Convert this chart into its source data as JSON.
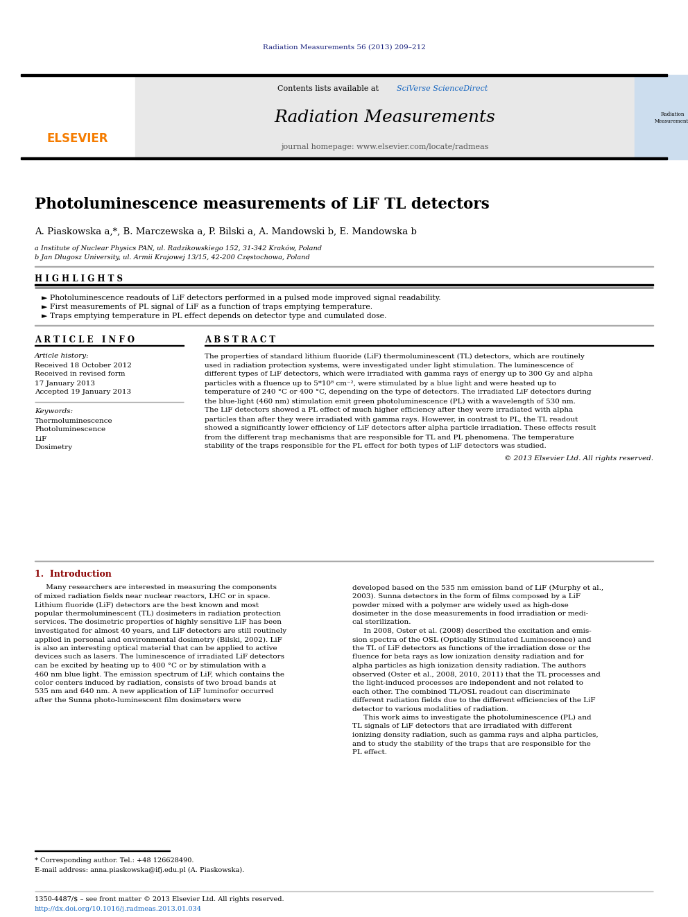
{
  "journal_ref": "Radiation Measurements 56 (2013) 209–212",
  "journal_ref_color": "#1a237e",
  "header_text1": "Contents lists available at ",
  "header_link": "SciVerse ScienceDirect",
  "journal_title": "Radiation Measurements",
  "journal_homepage": "journal homepage: www.elsevier.com/locate/radmeas",
  "elsevier_color": "#f57c00",
  "header_bg": "#e8e8e8",
  "article_title": "Photoluminescence measurements of LiF TL detectors",
  "authors": "A. Piaskowska a,*, B. Marczewska a, P. Bilski a, A. Mandowski b, E. Mandowska b",
  "affil1": "a Institute of Nuclear Physics PAN, ul. Radzikowskiego 152, 31-342 Kraków, Poland",
  "affil2": "b Jan Długosz University, ul. Armii Krajowej 13/15, 42-200 Częstochowa, Poland",
  "highlights_title": "H I G H L I G H T S",
  "highlight1": "► Photoluminescence readouts of LiF detectors performed in a pulsed mode improved signal readability.",
  "highlight2": "► First measurements of PL signal of LiF as a function of traps emptying temperature.",
  "highlight3": "► Traps emptying temperature in PL effect depends on detector type and cumulated dose.",
  "article_info_title": "A R T I C L E   I N F O",
  "abstract_title": "A B S T R A C T",
  "article_history": "Article history:",
  "received1": "Received 18 October 2012",
  "received2": "Received in revised form",
  "date2": "17 January 2013",
  "accepted": "Accepted 19 January 2013",
  "keywords_title": "Keywords:",
  "kw1": "Thermoluminescence",
  "kw2": "Photoluminescence",
  "kw3": "LiF",
  "kw4": "Dosimetry",
  "abstract_lines": [
    "The properties of standard lithium fluoride (LiF) thermoluminescent (TL) detectors, which are routinely",
    "used in radiation protection systems, were investigated under light stimulation. The luminescence of",
    "different types of LiF detectors, which were irradiated with gamma rays of energy up to 300 Gy and alpha",
    "particles with a fluence up to 5*10⁸ cm⁻², were stimulated by a blue light and were heated up to",
    "temperature of 240 °C or 400 °C, depending on the type of detectors. The irradiated LiF detectors during",
    "the blue-light (460 nm) stimulation emit green photoluminescence (PL) with a wavelength of 530 nm.",
    "The LiF detectors showed a PL effect of much higher efficiency after they were irradiated with alpha",
    "particles than after they were irradiated with gamma rays. However, in contrast to PL, the TL readout",
    "showed a significantly lower efficiency of LiF detectors after alpha particle irradiation. These effects result",
    "from the different trap mechanisms that are responsible for TL and PL phenomena. The temperature",
    "stability of the traps responsible for the PL effect for both types of LiF detectors was studied."
  ],
  "copyright": "© 2013 Elsevier Ltd. All rights reserved.",
  "intro_title": "1.  Introduction",
  "intro_col1_lines": [
    "     Many researchers are interested in measuring the components",
    "of mixed radiation fields near nuclear reactors, LHC or in space.",
    "Lithium fluoride (LiF) detectors are the best known and most",
    "popular thermoluminescent (TL) dosimeters in radiation protection",
    "services. The dosimetric properties of highly sensitive LiF has been",
    "investigated for almost 40 years, and LiF detectors are still routinely",
    "applied in personal and environmental dosimetry (Bilski, 2002). LiF",
    "is also an interesting optical material that can be applied to active",
    "devices such as lasers. The luminescence of irradiated LiF detectors",
    "can be excited by heating up to 400 °C or by stimulation with a",
    "460 nm blue light. The emission spectrum of LiF, which contains the",
    "color centers induced by radiation, consists of two broad bands at",
    "535 nm and 640 nm. A new application of LiF luminofor occurred",
    "after the Sunna photo-luminescent film dosimeters were"
  ],
  "intro_col2_lines": [
    "developed based on the 535 nm emission band of LiF (Murphy et al.,",
    "2003). Sunna detectors in the form of films composed by a LiF",
    "powder mixed with a polymer are widely used as high-dose",
    "dosimeter in the dose measurements in food irradiation or medi-",
    "cal sterilization.",
    "     In 2008, Oster et al. (2008) described the excitation and emis-",
    "sion spectra of the OSL (Optically Stimulated Luminescence) and",
    "the TL of LiF detectors as functions of the irradiation dose or the",
    "fluence for beta rays as low ionization density radiation and for",
    "alpha particles as high ionization density radiation. The authors",
    "observed (Oster et al., 2008, 2010, 2011) that the TL processes and",
    "the light-induced processes are independent and not related to",
    "each other. The combined TL/OSL readout can discriminate",
    "different radiation fields due to the different efficiencies of the LiF",
    "detector to various modalities of radiation.",
    "     This work aims to investigate the photoluminescence (PL) and",
    "TL signals of LiF detectors that are irradiated with different",
    "ionizing density radiation, such as gamma rays and alpha particles,",
    "and to study the stability of the traps that are responsible for the",
    "PL effect."
  ],
  "footnote_corr": "* Corresponding author. Tel.: +48 126628490.",
  "footnote_email": "E-mail address: anna.piaskowska@ifj.edu.pl (A. Piaskowska).",
  "footer1": "1350-4487/$ – see front matter © 2013 Elsevier Ltd. All rights reserved.",
  "footer2": "http://dx.doi.org/10.1016/j.radmeas.2013.01.034"
}
